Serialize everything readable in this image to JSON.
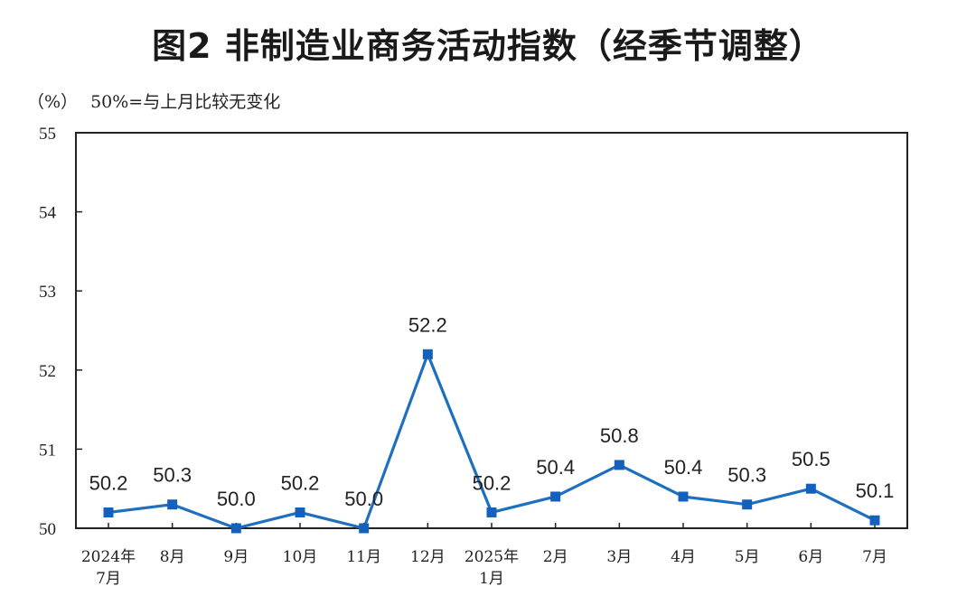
{
  "title": "图2  非制造业商务活动指数（经季节调整）",
  "unit": "（%）",
  "note": "50%=与上月比较无变化",
  "colors": {
    "line": "#1f6fbf",
    "marker": "#1560bd",
    "axis": "#222222"
  },
  "chart_data": {
    "type": "line",
    "title": "图2  非制造业商务活动指数（经季节调整）",
    "ylabel": "（%）",
    "ylim": [
      50,
      55
    ],
    "yticks": [
      "50",
      "51",
      "52",
      "53",
      "54",
      "55"
    ],
    "categories": [
      [
        "2024年",
        "7月"
      ],
      [
        "8月"
      ],
      [
        "9月"
      ],
      [
        "10月"
      ],
      [
        "11月"
      ],
      [
        "12月"
      ],
      [
        "2025年",
        "1月"
      ],
      [
        "2月"
      ],
      [
        "3月"
      ],
      [
        "4月"
      ],
      [
        "5月"
      ],
      [
        "6月"
      ],
      [
        "7月"
      ]
    ],
    "values": [
      50.2,
      50.3,
      50.0,
      50.2,
      50.0,
      52.2,
      50.2,
      50.4,
      50.8,
      50.4,
      50.3,
      50.5,
      50.1
    ],
    "labels": [
      "50.2",
      "50.3",
      "50.0",
      "50.2",
      "50.0",
      "52.2",
      "50.2",
      "50.4",
      "50.8",
      "50.4",
      "50.3",
      "50.5",
      "50.1"
    ],
    "grid": false,
    "legend": "none",
    "marker": "square"
  }
}
